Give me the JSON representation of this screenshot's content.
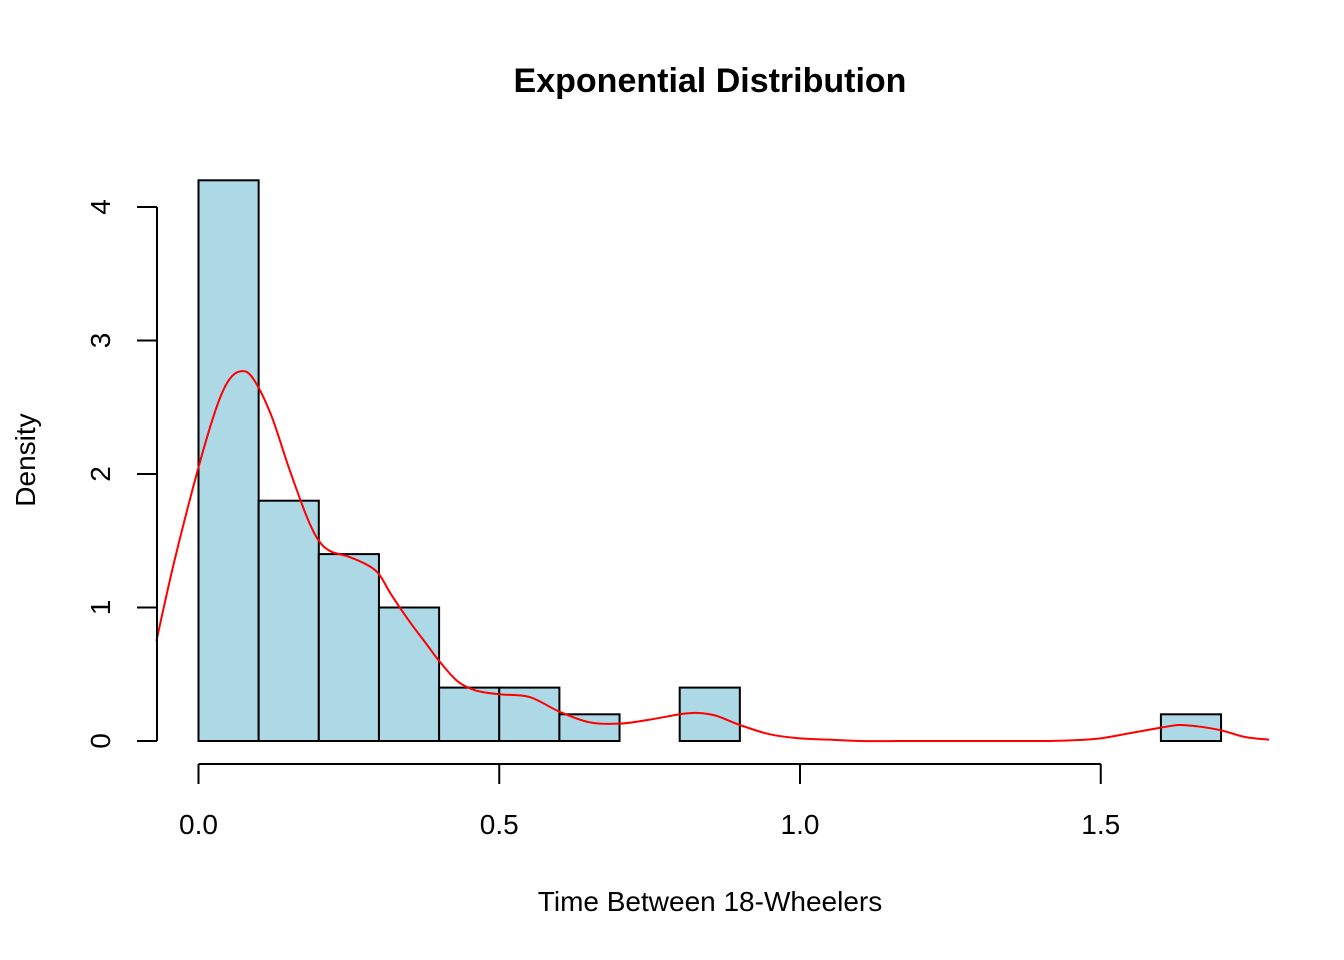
{
  "chart_data": {
    "type": "histogram",
    "title": "Exponential Distribution",
    "xlabel": "Time Between 18-Wheelers",
    "ylabel": "Density",
    "xlim": [
      -0.07,
      1.78
    ],
    "ylim": [
      0,
      4.4
    ],
    "x_ticks": [
      0.0,
      0.5,
      1.0,
      1.5
    ],
    "x_tick_labels": [
      "0.0",
      "0.5",
      "1.0",
      "1.5"
    ],
    "y_ticks": [
      0,
      1,
      2,
      3,
      4
    ],
    "y_tick_labels": [
      "0",
      "1",
      "2",
      "3",
      "4"
    ],
    "grid": false,
    "bar_color": "#add8e6",
    "curve_color": "#ff0000",
    "bins": [
      {
        "x0": 0.0,
        "x1": 0.1,
        "density": 4.2
      },
      {
        "x0": 0.1,
        "x1": 0.2,
        "density": 1.8
      },
      {
        "x0": 0.2,
        "x1": 0.3,
        "density": 1.4
      },
      {
        "x0": 0.3,
        "x1": 0.4,
        "density": 1.0
      },
      {
        "x0": 0.4,
        "x1": 0.5,
        "density": 0.4
      },
      {
        "x0": 0.5,
        "x1": 0.6,
        "density": 0.4
      },
      {
        "x0": 0.6,
        "x1": 0.7,
        "density": 0.2
      },
      {
        "x0": 0.7,
        "x1": 0.8,
        "density": 0.0
      },
      {
        "x0": 0.8,
        "x1": 0.9,
        "density": 0.4
      },
      {
        "x0": 0.9,
        "x1": 1.0,
        "density": 0.0
      },
      {
        "x0": 1.0,
        "x1": 1.1,
        "density": 0.0
      },
      {
        "x0": 1.1,
        "x1": 1.2,
        "density": 0.0
      },
      {
        "x0": 1.2,
        "x1": 1.3,
        "density": 0.0
      },
      {
        "x0": 1.3,
        "x1": 1.4,
        "density": 0.0
      },
      {
        "x0": 1.4,
        "x1": 1.5,
        "density": 0.0
      },
      {
        "x0": 1.5,
        "x1": 1.6,
        "density": 0.0
      },
      {
        "x0": 1.6,
        "x1": 1.7,
        "density": 0.2
      }
    ],
    "density_curve": {
      "x": [
        -0.07,
        -0.04,
        0.0,
        0.03,
        0.05,
        0.07,
        0.09,
        0.12,
        0.15,
        0.18,
        0.2,
        0.22,
        0.25,
        0.28,
        0.3,
        0.32,
        0.35,
        0.38,
        0.4,
        0.43,
        0.46,
        0.5,
        0.55,
        0.6,
        0.65,
        0.7,
        0.75,
        0.8,
        0.83,
        0.86,
        0.9,
        0.95,
        1.0,
        1.05,
        1.1,
        1.2,
        1.3,
        1.4,
        1.45,
        1.5,
        1.55,
        1.6,
        1.63,
        1.66,
        1.7,
        1.74,
        1.78
      ],
      "y": [
        0.75,
        1.35,
        2.05,
        2.5,
        2.7,
        2.77,
        2.72,
        2.45,
        2.05,
        1.68,
        1.5,
        1.42,
        1.38,
        1.32,
        1.25,
        1.1,
        0.9,
        0.72,
        0.6,
        0.45,
        0.38,
        0.35,
        0.33,
        0.22,
        0.14,
        0.13,
        0.16,
        0.2,
        0.21,
        0.19,
        0.12,
        0.05,
        0.02,
        0.01,
        0.0,
        0.0,
        0.0,
        0.0,
        0.005,
        0.02,
        0.06,
        0.1,
        0.12,
        0.11,
        0.08,
        0.03,
        0.01
      ]
    }
  }
}
